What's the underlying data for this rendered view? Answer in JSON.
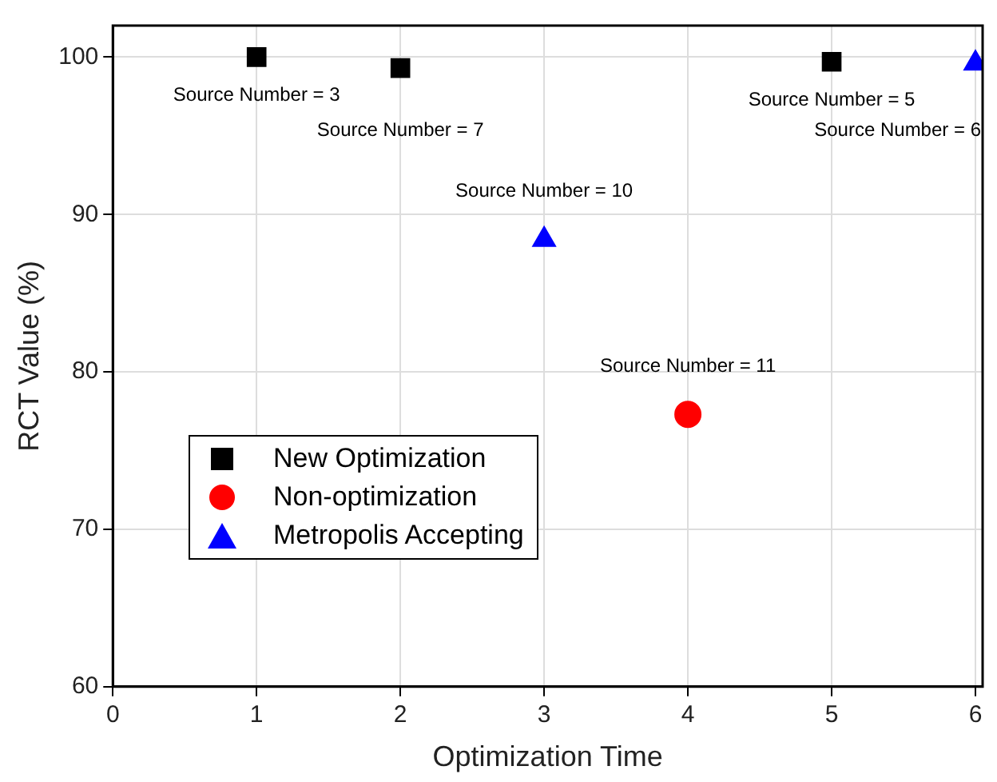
{
  "chart_data": {
    "type": "scatter",
    "xlabel": "Optimization Time",
    "ylabel": "RCT Value (%)",
    "xlim": [
      0,
      6.05
    ],
    "xticks": [
      0,
      1,
      2,
      3,
      4,
      5,
      6
    ],
    "ylim": [
      60,
      102
    ],
    "yticks": [
      60,
      70,
      80,
      90,
      100
    ],
    "grid": true,
    "legend": "left",
    "series": [
      {
        "name": "New Optimization",
        "color": "#000000",
        "marker": "square",
        "x": [
          1,
          2,
          5
        ],
        "values": [
          100,
          99.3,
          99.7
        ]
      },
      {
        "name": "Non-optimization",
        "color": "#ff0000",
        "marker": "circle",
        "x": [
          4
        ],
        "values": [
          77.3
        ]
      },
      {
        "name": "Metropolis Accepting",
        "color": "#0000ff",
        "marker": "triangle",
        "x": [
          3,
          6
        ],
        "values": [
          88.4,
          99.6
        ]
      }
    ],
    "annotations": [
      {
        "text": "Source Number = 3",
        "x": 1,
        "y": 100
      },
      {
        "text": "Source Number = 7",
        "x": 2,
        "y": 99.3
      },
      {
        "text": "Source Number = 5",
        "x": 5,
        "y": 99.7
      },
      {
        "text": "Source Number = 6",
        "x": 6,
        "y": 99.6
      },
      {
        "text": "Source Number = 10",
        "x": 3,
        "y": 88.4
      },
      {
        "text": "Source Number = 11",
        "x": 4,
        "y": 77.3
      }
    ]
  }
}
